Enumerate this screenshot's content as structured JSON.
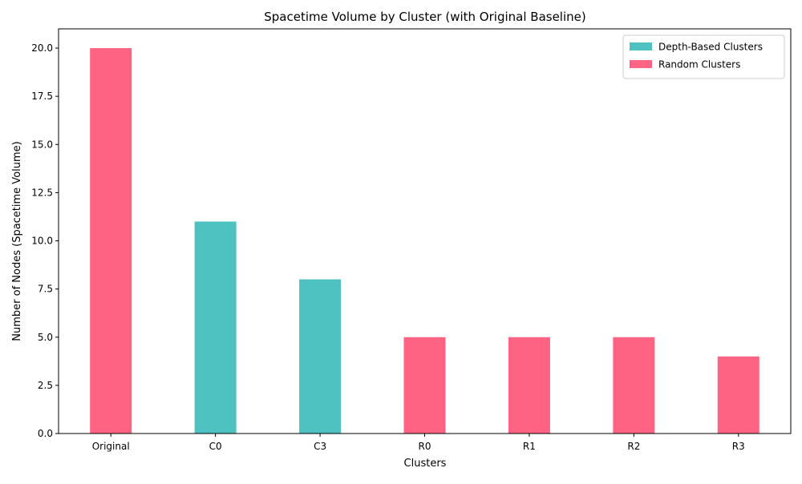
{
  "chart_data": {
    "type": "bar",
    "title": "Spacetime Volume by Cluster (with Original Baseline)",
    "xlabel": "Clusters",
    "ylabel": "Number of Nodes (Spacetime Volume)",
    "categories": [
      "Original",
      "C0",
      "C3",
      "R0",
      "R1",
      "R2",
      "R3"
    ],
    "values": [
      20,
      11,
      8,
      5,
      5,
      5,
      4
    ],
    "bar_groups": [
      "random",
      "depth",
      "depth",
      "random",
      "random",
      "random",
      "random"
    ],
    "series": [
      {
        "key": "depth",
        "name": "Depth-Based Clusters",
        "color": "#4ec1c1"
      },
      {
        "key": "random",
        "name": "Random Clusters",
        "color": "#ff6384"
      }
    ],
    "ylim": [
      0,
      21
    ],
    "yticks": [
      0,
      2.5,
      5,
      7.5,
      10,
      12.5,
      15,
      17.5,
      20
    ],
    "ytick_labels": [
      "0.0",
      "2.5",
      "5.0",
      "7.5",
      "10.0",
      "12.5",
      "15.0",
      "17.5",
      "20.0"
    ],
    "grid": false,
    "legend_position": "top-right"
  }
}
